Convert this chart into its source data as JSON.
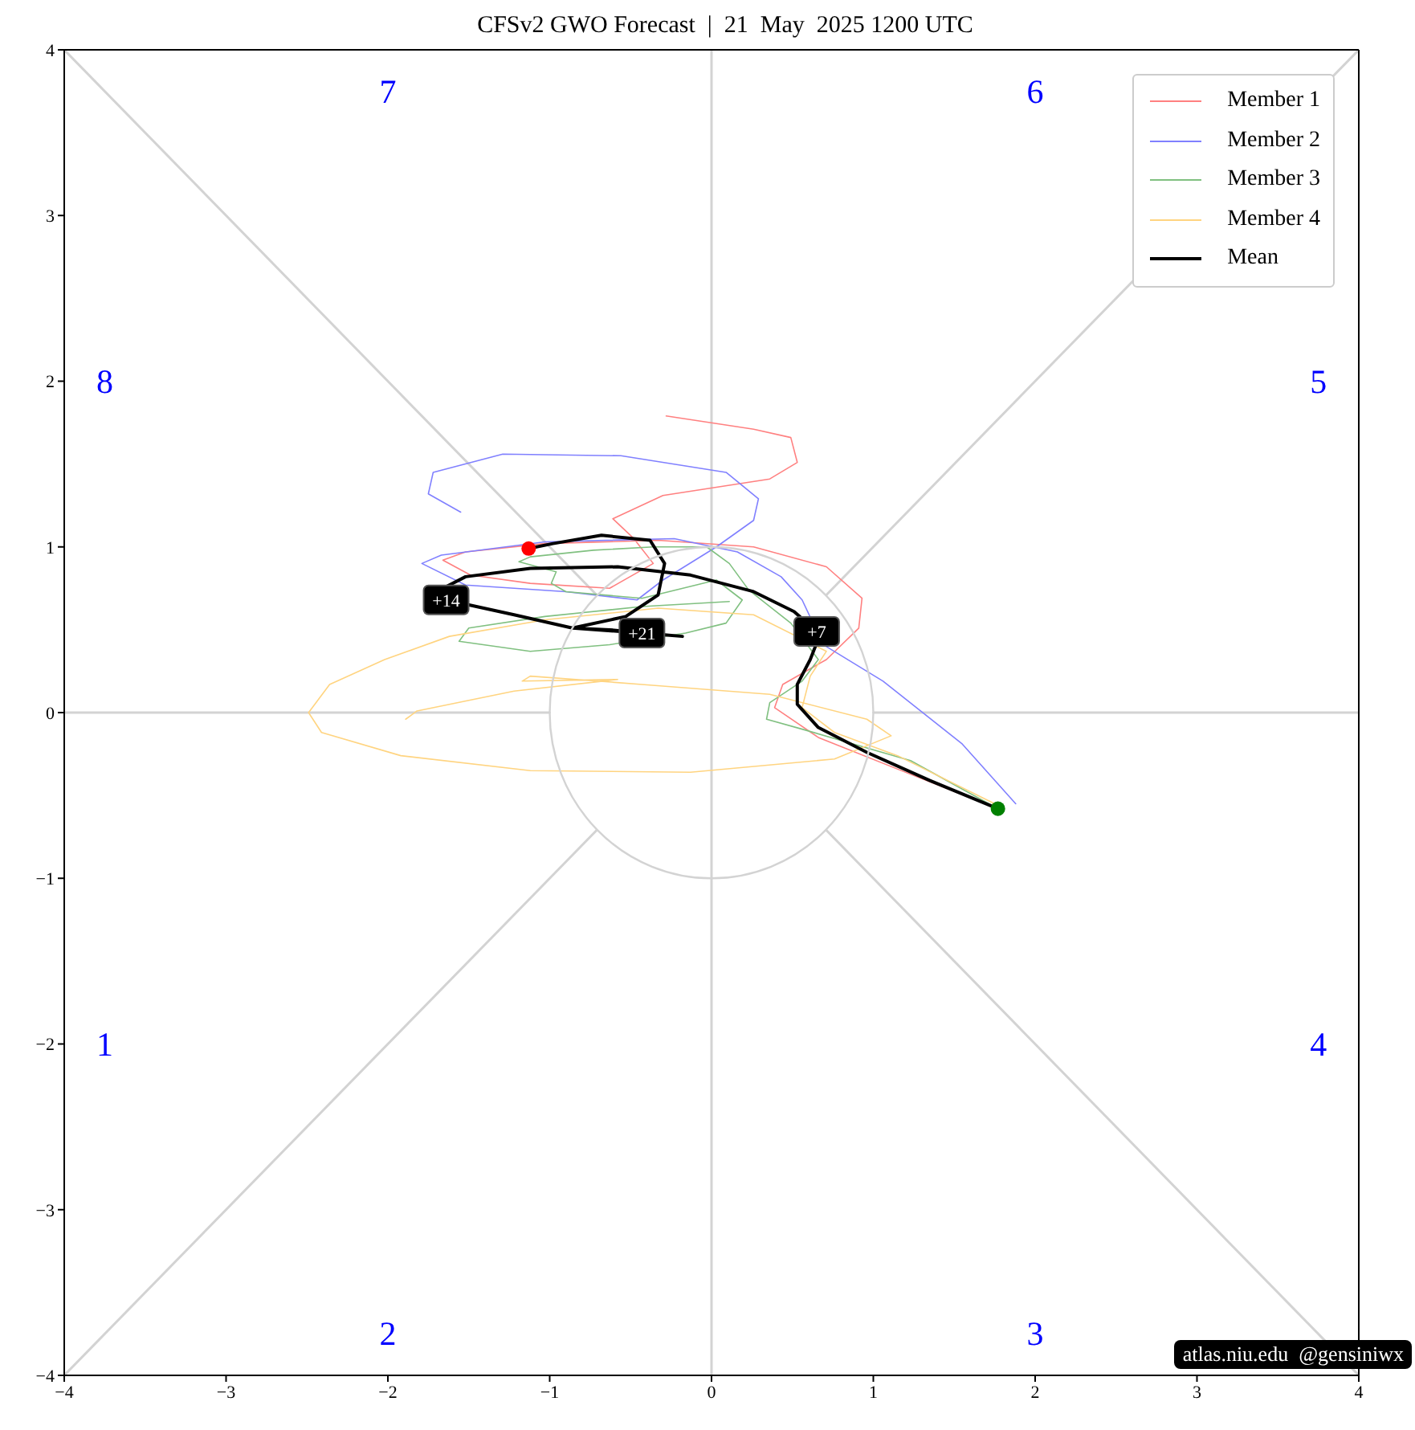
{
  "chart_data": {
    "type": "line",
    "title": "CFSv2 GWO Forecast  |  21  May  2025 1200 UTC",
    "ref_lines": [
      {
        "axis": "x",
        "value": 0,
        "color": "#d3d3d3"
      }
    ],
    "xlim": [
      -4,
      4
    ],
    "ylim": [
      -4,
      4
    ],
    "xticks": [
      -4,
      -3,
      -2,
      -1,
      0,
      1,
      2,
      3,
      4
    ],
    "yticks": [
      -4,
      -3,
      -2,
      -1,
      0,
      1,
      2,
      3,
      4
    ],
    "grid": false,
    "legend": "top right",
    "marker": "none",
    "line_style": "solid",
    "series": [
      {
        "color": "#d3d3d3",
        "x": [
          -4,
          -0.71,
          0,
          0.71,
          4
        ],
        "values": [
          -4,
          -0.71,
          null,
          0.71,
          4
        ]
      },
      {
        "color": "#d3d3d3",
        "x": [
          -4,
          -0.71,
          0,
          0.71,
          4
        ],
        "values": [
          4,
          0.71,
          null,
          -0.71,
          -4
        ]
      },
      {
        "color": "#d3d3d3",
        "x": [
          -4,
          -1,
          0,
          1,
          4
        ],
        "values": [
          0,
          0,
          null,
          0,
          0
        ]
      },
      {
        "name": "Member 1",
        "color": "#ff8080",
        "x": [
          1.77,
          1.25,
          0.66,
          0.39,
          0.44,
          0.71,
          0.91,
          0.93,
          0.71,
          0.26,
          -0.33,
          -1.03,
          -1.52,
          -1.66,
          -1.49,
          -1.12,
          -0.63,
          -0.36,
          -0.48,
          -0.61,
          -0.3,
          0.36,
          0.53,
          0.49,
          0.26,
          -0.28
        ],
        "values": [
          -0.58,
          -0.38,
          -0.15,
          0.03,
          0.17,
          0.32,
          0.51,
          0.69,
          0.88,
          1.0,
          1.04,
          1.02,
          0.97,
          0.92,
          0.83,
          0.78,
          0.75,
          0.9,
          1.05,
          1.17,
          1.31,
          1.41,
          1.51,
          1.66,
          1.71,
          1.79
        ]
      },
      {
        "name": "Member 2",
        "color": "#8080ff",
        "x": [
          1.88,
          1.55,
          1.06,
          0.69,
          0.56,
          0.43,
          0.16,
          -0.23,
          -1.03,
          -1.67,
          -1.79,
          -1.52,
          -0.9,
          -0.46,
          -0.3,
          0.03,
          0.26,
          0.29,
          0.09,
          -0.56,
          -1.29,
          -1.72,
          -1.75,
          -1.55
        ],
        "values": [
          -0.55,
          -0.19,
          0.19,
          0.41,
          0.68,
          0.82,
          0.97,
          1.05,
          1.03,
          0.95,
          0.9,
          0.77,
          0.73,
          0.68,
          0.8,
          1.0,
          1.16,
          1.29,
          1.45,
          1.55,
          1.56,
          1.45,
          1.32,
          1.21
        ]
      },
      {
        "name": "Member 3",
        "color": "#80c080",
        "x": [
          1.75,
          1.23,
          0.56,
          0.34,
          0.36,
          0.56,
          0.66,
          0.49,
          0.23,
          0.11,
          -0.03,
          -0.36,
          -0.73,
          -1.12,
          -1.19,
          -0.96,
          -0.99,
          -0.9,
          -0.43,
          0.03,
          0.19,
          0.09,
          -0.16,
          -0.63,
          -1.12,
          -1.56,
          -1.5,
          -1.03,
          -0.43,
          0.11
        ],
        "values": [
          -0.57,
          -0.29,
          -0.1,
          -0.04,
          0.06,
          0.19,
          0.32,
          0.54,
          0.74,
          0.9,
          1.0,
          1.0,
          0.98,
          0.94,
          0.91,
          0.85,
          0.78,
          0.73,
          0.69,
          0.8,
          0.68,
          0.54,
          0.48,
          0.41,
          0.37,
          0.43,
          0.51,
          0.58,
          0.64,
          0.67
        ]
      },
      {
        "name": "Member 4",
        "color": "#ffd480",
        "x": [
          1.75,
          1.15,
          0.76,
          0.56,
          0.61,
          0.71,
          0.26,
          -0.33,
          -1.03,
          -1.62,
          -2.02,
          -2.36,
          -2.49,
          -2.41,
          -1.92,
          -1.12,
          -0.13,
          0.76,
          1.11,
          0.96,
          0.36,
          -0.43,
          -1.12,
          -1.17,
          -0.58,
          -1.22,
          -1.82,
          -1.89
        ],
        "values": [
          -0.55,
          -0.26,
          -0.12,
          0.03,
          0.22,
          0.37,
          0.59,
          0.63,
          0.56,
          0.46,
          0.32,
          0.17,
          0.0,
          -0.12,
          -0.26,
          -0.35,
          -0.36,
          -0.28,
          -0.14,
          -0.04,
          0.11,
          0.17,
          0.22,
          0.19,
          0.2,
          0.13,
          0.01,
          -0.04
        ]
      },
      {
        "name": "Mean",
        "color": "#000000",
        "x": [
          1.77,
          1.35,
          0.96,
          0.66,
          0.53,
          0.53,
          0.61,
          0.65,
          0.65,
          0.51,
          0.26,
          -0.13,
          -0.58,
          -1.12,
          -1.52,
          -1.7,
          -1.64,
          -1.22,
          -0.86,
          -0.43,
          -0.18,
          -0.63,
          -0.86,
          -0.53,
          -0.33,
          -0.29,
          -0.38,
          -0.68,
          -0.98,
          -1.13
        ],
        "values": [
          -0.58,
          -0.41,
          -0.24,
          -0.09,
          0.05,
          0.17,
          0.32,
          0.42,
          0.49,
          0.61,
          0.73,
          0.83,
          0.88,
          0.87,
          0.82,
          0.73,
          0.68,
          0.59,
          0.51,
          0.48,
          0.46,
          0.5,
          0.51,
          0.58,
          0.71,
          0.9,
          1.04,
          1.07,
          1.02,
          0.99
        ]
      },
      {
        "type": "scatter",
        "marker": "circle",
        "color": "#008000",
        "x": [
          1.77
        ],
        "values": [
          -0.58
        ]
      },
      {
        "type": "scatter",
        "marker": "circle",
        "color": "#ff0000",
        "x": [
          -1.13
        ],
        "values": [
          0.99
        ]
      }
    ],
    "annotations": [
      "1",
      "2",
      "3",
      "4",
      "5",
      "6",
      "7",
      "8",
      {
        "text": "+7",
        "x": 0.65,
        "y": 0.49
      },
      {
        "text": "+14",
        "x": -1.64,
        "y": 0.68
      },
      {
        "text": "+21",
        "x": -0.43,
        "y": 0.48
      },
      "atlas.niu.edu  @gensiniwx"
    ]
  }
}
